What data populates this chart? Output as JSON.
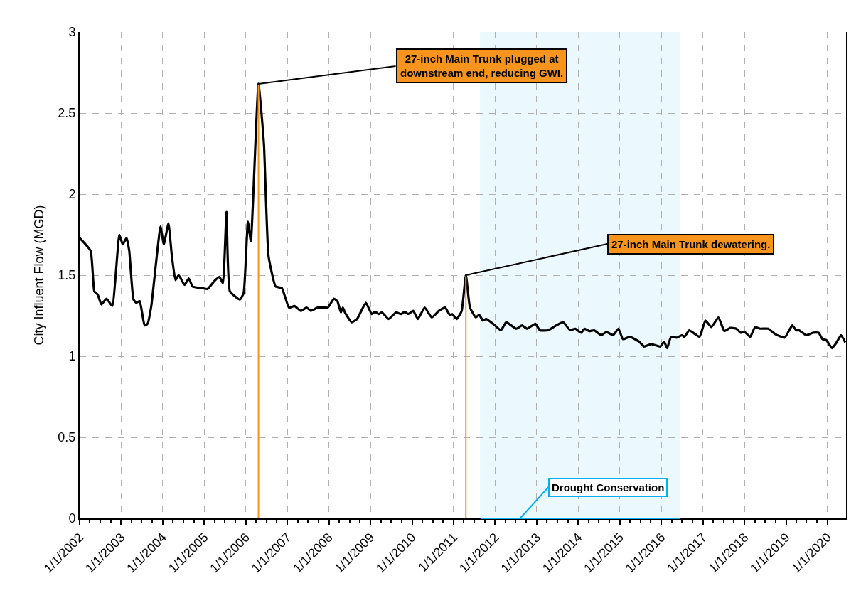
{
  "chart_data": {
    "type": "line",
    "ylabel": "City Influent Flow (MGD)",
    "x": [
      "2002-01-01",
      "2002-04-08",
      "2002-05-10",
      "2002-06-09",
      "2002-07-11",
      "2002-08-25",
      "2002-10-15",
      "2002-12-16",
      "2003-01-15",
      "2003-02-17",
      "2003-03-13",
      "2003-04-19",
      "2003-05-14",
      "2003-06-13",
      "2003-07-26",
      "2003-08-21",
      "2003-09-23",
      "2003-12-13",
      "2004-01-11",
      "2004-02-21",
      "2004-03-20",
      "2004-04-22",
      "2004-05-21",
      "2004-07-11",
      "2004-08-17",
      "2004-09-20",
      "2004-12-16",
      "2005-01-29",
      "2005-04-01",
      "2005-05-14",
      "2005-06-13",
      "2005-07-15",
      "2005-08-14",
      "2005-11-10",
      "2005-12-13",
      "2006-01-19",
      "2006-02-14",
      "2006-04-22",
      "2006-06-09",
      "2006-07-19",
      "2006-09-20",
      "2006-11-14",
      "2007-01-15",
      "2007-03-05",
      "2007-04-29",
      "2007-06-20",
      "2007-07-26",
      "2007-09-23",
      "2007-11-25",
      "2007-12-23",
      "2008-02-14",
      "2008-03-16",
      "2008-04-15",
      "2008-05-03",
      "2008-05-21",
      "2008-07-19",
      "2008-09-05",
      "2008-11-21",
      "2009-01-11",
      "2009-02-10",
      "2009-03-13",
      "2009-04-11",
      "2009-06-09",
      "2009-08-14",
      "2009-09-27",
      "2009-10-29",
      "2009-11-28",
      "2010-01-11",
      "2010-02-21",
      "2010-04-22",
      "2010-06-23",
      "2010-08-25",
      "2010-10-19",
      "2010-11-28",
      "2010-12-20",
      "2011-01-29",
      "2011-03-13",
      "2011-04-19",
      "2011-05-25",
      "2011-07-15",
      "2011-08-14",
      "2011-09-16",
      "2011-10-15",
      "2012-01-01",
      "2012-02-21",
      "2012-04-08",
      "2012-07-04",
      "2012-08-25",
      "2012-10-08",
      "2012-12-20",
      "2013-01-29",
      "2013-04-11",
      "2013-06-20",
      "2013-08-21",
      "2013-10-22",
      "2013-12-05",
      "2014-01-26",
      "2014-02-25",
      "2014-04-08",
      "2014-05-21",
      "2014-07-22",
      "2014-09-05",
      "2014-11-03",
      "2014-12-20",
      "2015-01-29",
      "2015-04-01",
      "2015-06-20",
      "2015-08-03",
      "2015-10-04",
      "2015-12-23",
      "2016-01-26",
      "2016-02-21",
      "2016-03-27",
      "2016-05-17",
      "2016-07-01",
      "2016-07-22",
      "2016-09-02",
      "2016-12-02",
      "2017-01-22",
      "2017-03-16",
      "2017-05-17",
      "2017-07-08",
      "2017-08-28",
      "2017-10-22",
      "2017-11-28",
      "2018-01-01",
      "2018-02-21",
      "2018-04-04",
      "2018-05-17",
      "2018-07-29",
      "2018-10-01",
      "2018-12-20",
      "2019-02-25",
      "2019-04-01",
      "2019-04-26",
      "2019-06-27",
      "2019-08-28",
      "2019-10-15",
      "2019-11-17",
      "2019-12-20",
      "2020-02-10",
      "2020-03-16",
      "2020-04-29",
      "2020-06-05"
    ],
    "values": [
      1.73,
      1.65,
      1.4,
      1.38,
      1.32,
      1.355,
      1.31,
      1.75,
      1.69,
      1.73,
      1.65,
      1.35,
      1.33,
      1.34,
      1.19,
      1.2,
      1.31,
      1.8,
      1.69,
      1.82,
      1.63,
      1.47,
      1.5,
      1.44,
      1.48,
      1.43,
      1.42,
      1.415,
      1.465,
      1.49,
      1.45,
      1.89,
      1.4,
      1.35,
      1.39,
      1.83,
      1.71,
      2.68,
      2.31,
      1.62,
      1.43,
      1.42,
      1.3,
      1.31,
      1.28,
      1.3,
      1.28,
      1.3,
      1.3,
      1.3,
      1.355,
      1.34,
      1.27,
      1.3,
      1.27,
      1.21,
      1.23,
      1.33,
      1.26,
      1.275,
      1.26,
      1.27,
      1.23,
      1.27,
      1.26,
      1.275,
      1.26,
      1.28,
      1.23,
      1.3,
      1.24,
      1.28,
      1.3,
      1.255,
      1.26,
      1.23,
      1.28,
      1.5,
      1.3,
      1.24,
      1.255,
      1.22,
      1.23,
      1.19,
      1.16,
      1.21,
      1.17,
      1.19,
      1.17,
      1.2,
      1.16,
      1.16,
      1.19,
      1.21,
      1.16,
      1.17,
      1.145,
      1.17,
      1.155,
      1.16,
      1.13,
      1.15,
      1.13,
      1.17,
      1.105,
      1.12,
      1.09,
      1.06,
      1.075,
      1.06,
      1.09,
      1.05,
      1.12,
      1.115,
      1.13,
      1.12,
      1.16,
      1.12,
      1.22,
      1.18,
      1.24,
      1.155,
      1.175,
      1.17,
      1.145,
      1.15,
      1.12,
      1.18,
      1.17,
      1.17,
      1.135,
      1.115,
      1.19,
      1.16,
      1.16,
      1.13,
      1.145,
      1.145,
      1.105,
      1.1,
      1.05,
      1.08,
      1.13,
      1.085
    ],
    "color": "#000000",
    "marker": "none",
    "line_style": "solid",
    "grid": true,
    "xlim": [
      "2002-01-01",
      "2020-06-12"
    ],
    "ylim": [
      0,
      3
    ],
    "xticks": [
      {
        "value": "2002-01-01",
        "label": "1/1/2002"
      },
      {
        "value": "2003-01-01",
        "label": "1/1/2003"
      },
      {
        "value": "2004-01-01",
        "label": "1/1/2004"
      },
      {
        "value": "2005-01-01",
        "label": "1/1/2005"
      },
      {
        "value": "2006-01-01",
        "label": "1/1/2006"
      },
      {
        "value": "2007-01-01",
        "label": "1/1/2007"
      },
      {
        "value": "2008-01-01",
        "label": "1/1/2008"
      },
      {
        "value": "2009-01-01",
        "label": "1/1/2009"
      },
      {
        "value": "2010-01-01",
        "label": "1/1/2010"
      },
      {
        "value": "2011-01-01",
        "label": "1/1/2011"
      },
      {
        "value": "2012-01-01",
        "label": "1/1/2012"
      },
      {
        "value": "2013-01-01",
        "label": "1/1/2013"
      },
      {
        "value": "2014-01-01",
        "label": "1/1/2014"
      },
      {
        "value": "2015-01-01",
        "label": "1/1/2015"
      },
      {
        "value": "2016-01-01",
        "label": "1/1/2016"
      },
      {
        "value": "2017-01-01",
        "label": "1/1/2017"
      },
      {
        "value": "2018-01-01",
        "label": "1/1/2018"
      },
      {
        "value": "2019-01-01",
        "label": "1/1/2019"
      },
      {
        "value": "2020-01-01",
        "label": "1/1/2020"
      }
    ],
    "yticks": [
      0,
      0.5,
      1,
      1.5,
      2,
      2.5,
      3
    ],
    "annotations": [
      {
        "text": "27-inch Main Trunk plugged at\ndownstream end, reducing GWI.",
        "x": "2006-04-22",
        "y": 2.68
      },
      {
        "text": "27-inch Main Trunk dewatering.",
        "x": "2011-04-19",
        "y": 1.5
      }
    ],
    "ref_lines": [
      {
        "axis": "x",
        "value": "2006-04-22",
        "color": "#f7941d"
      },
      {
        "axis": "x",
        "value": "2011-04-19",
        "color": "#f7941d"
      }
    ],
    "bands": [
      {
        "axis": "x",
        "from": "2011-08-21",
        "to": "2016-06-16",
        "label": "Drought Conservation",
        "color": "#00b0f0"
      }
    ]
  }
}
